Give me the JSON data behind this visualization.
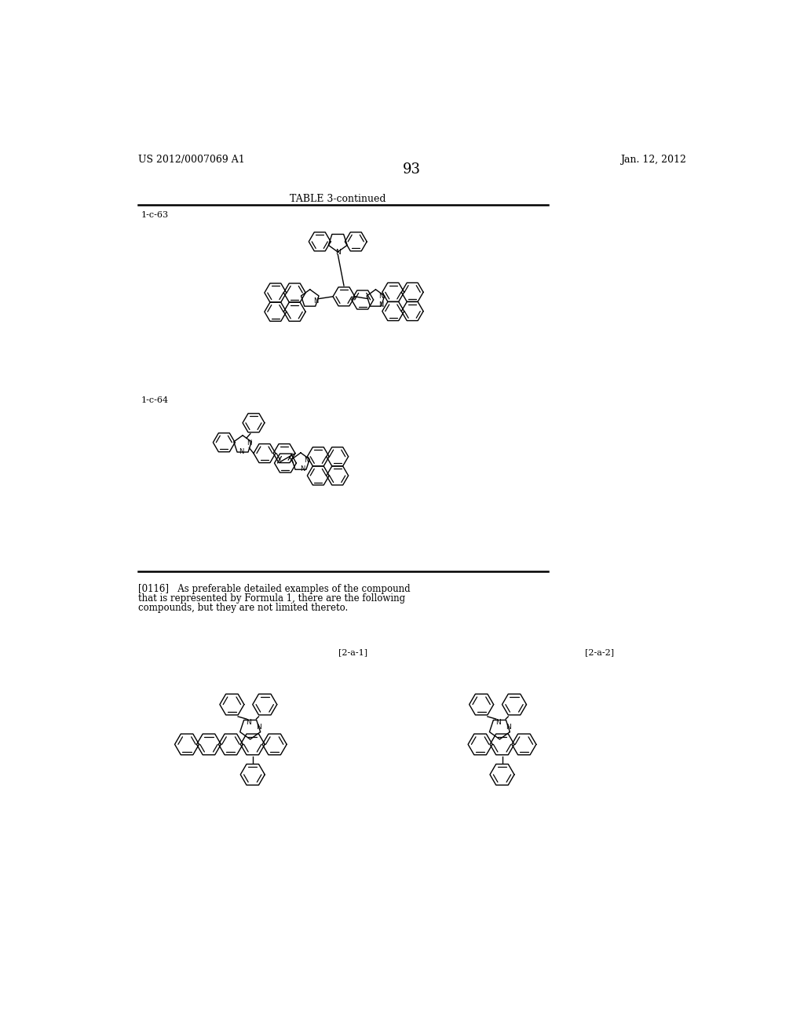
{
  "background_color": "#ffffff",
  "header_left": "US 2012/0007069 A1",
  "header_right": "Jan. 12, 2012",
  "page_number": "93",
  "table_title": "TABLE 3-continued",
  "label_1c63": "1-c-63",
  "label_1c64": "1-c-64",
  "paragraph_text": "[0116]   As preferable detailed examples of the compound\nthat is represented by Formula 1, there are the following\ncompounds, but they are not limited thereto.",
  "label_2a1": "[2-a-1]",
  "label_2a2": "[2-a-2]"
}
